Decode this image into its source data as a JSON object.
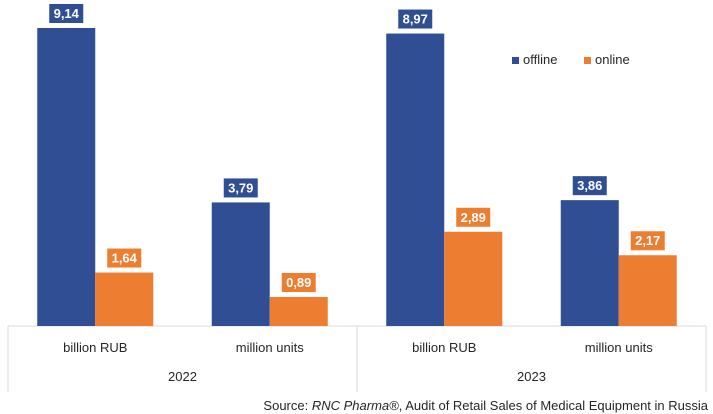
{
  "chart_data": {
    "type": "bar",
    "title": "",
    "xlabel": "",
    "ylabel": "",
    "ylim": [
      0,
      10
    ],
    "grid": false,
    "legend_position": "top-right",
    "groups": [
      {
        "label": "2022",
        "categories": [
          "billion RUB",
          "million units"
        ]
      },
      {
        "label": "2023",
        "categories": [
          "billion RUB",
          "million units"
        ]
      }
    ],
    "series": [
      {
        "name": "offline",
        "color": "#2F4E93",
        "values": [
          9.14,
          3.79,
          8.97,
          3.86
        ],
        "labels": [
          "9,14",
          "3,79",
          "8,97",
          "3,86"
        ]
      },
      {
        "name": "online",
        "color": "#ED7D31",
        "values": [
          1.64,
          0.89,
          2.89,
          2.17
        ],
        "labels": [
          "1,64",
          "0,89",
          "2,89",
          "2,17"
        ]
      }
    ]
  },
  "source": {
    "prefix": "Source: ",
    "publisher": "RNC Pharma®",
    "suffix": ", Audit of Retail Sales of Medical Equipment in Russia"
  }
}
